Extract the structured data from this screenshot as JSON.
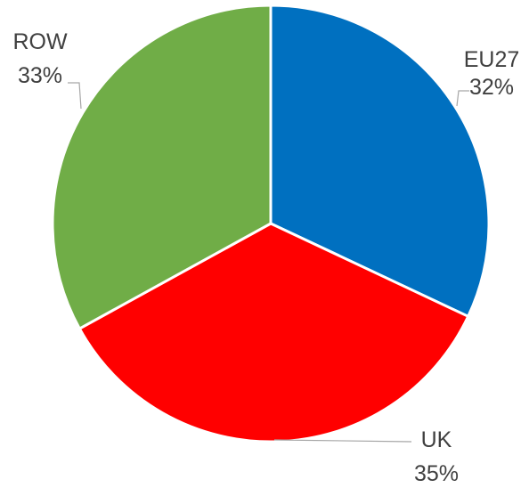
{
  "chart_data": {
    "type": "pie",
    "title": "",
    "slices": [
      {
        "label": "EU27",
        "value": 32,
        "value_label": "32%",
        "color": "#0070C0"
      },
      {
        "label": "UK",
        "value": 35,
        "value_label": "35%",
        "color": "#FF0000"
      },
      {
        "label": "ROW",
        "value": 33,
        "value_label": "33%",
        "color": "#70AD47"
      }
    ],
    "start_angle": "12 o'clock",
    "direction": "clockwise",
    "legend": "none",
    "data_labels": "outside with leader lines"
  }
}
